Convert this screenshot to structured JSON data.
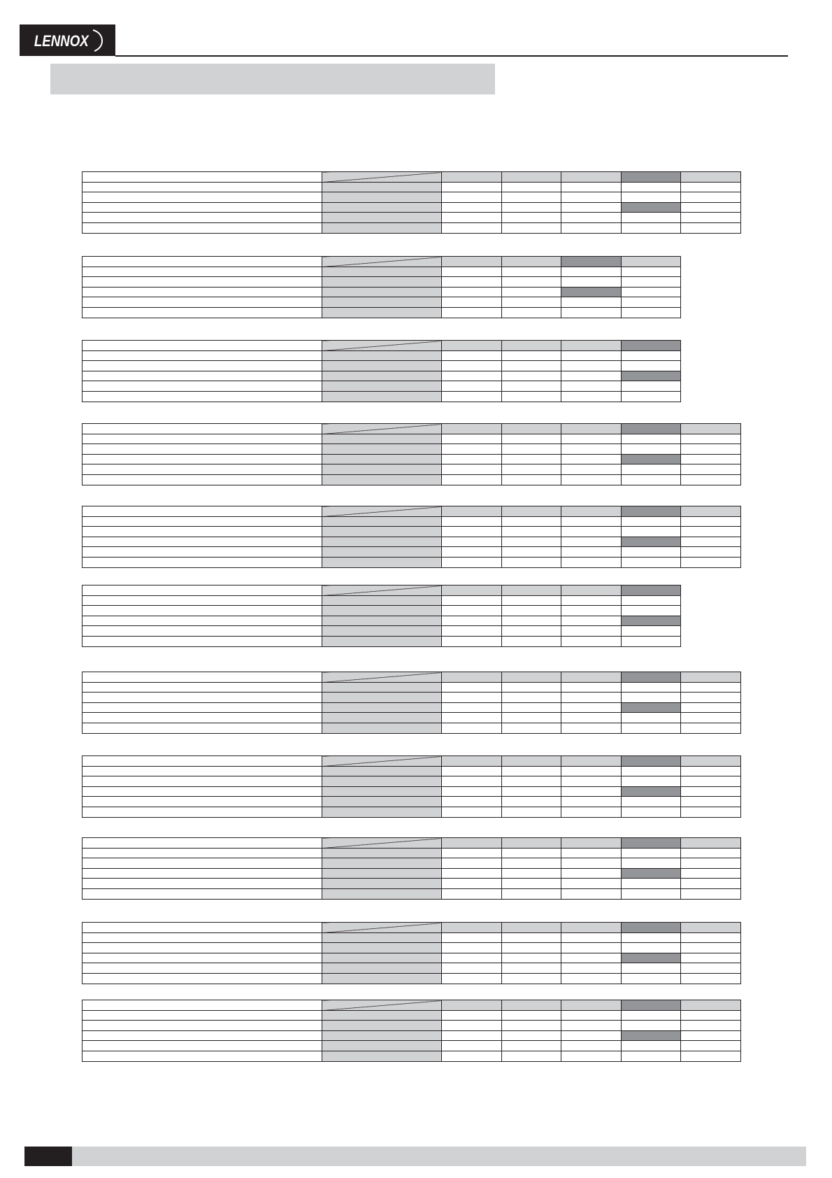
{
  "header": {
    "logo_text": "LENNOX",
    "title": ""
  },
  "colors": {
    "dark": "#231f20",
    "light_gray": "#d1d2d4",
    "mid_gray": "#939598"
  },
  "tables": [
    {
      "value_columns": 5,
      "highlight_column": 4,
      "body_rows": 5,
      "highlight_row": 3
    },
    {
      "value_columns": 4,
      "highlight_column": 3,
      "body_rows": 5,
      "highlight_row": 3
    },
    {
      "value_columns": 4,
      "highlight_column": 4,
      "body_rows": 5,
      "highlight_row": 3
    },
    {
      "value_columns": 5,
      "highlight_column": 4,
      "body_rows": 5,
      "highlight_row": 3
    },
    {
      "value_columns": 5,
      "highlight_column": 4,
      "body_rows": 5,
      "highlight_row": 3
    },
    {
      "value_columns": 4,
      "highlight_column": 4,
      "body_rows": 5,
      "highlight_row": 3
    },
    {
      "value_columns": 5,
      "highlight_column": 4,
      "body_rows": 5,
      "highlight_row": 3
    },
    {
      "value_columns": 5,
      "highlight_column": 4,
      "body_rows": 5,
      "highlight_row": 3
    },
    {
      "value_columns": 5,
      "highlight_column": 4,
      "body_rows": 5,
      "highlight_row": 3
    },
    {
      "value_columns": 5,
      "highlight_column": 4,
      "body_rows": 5,
      "highlight_row": 3
    },
    {
      "value_columns": 5,
      "highlight_column": 4,
      "body_rows": 5,
      "highlight_row": 3
    }
  ],
  "footer": {
    "page_number": "",
    "text": ""
  }
}
